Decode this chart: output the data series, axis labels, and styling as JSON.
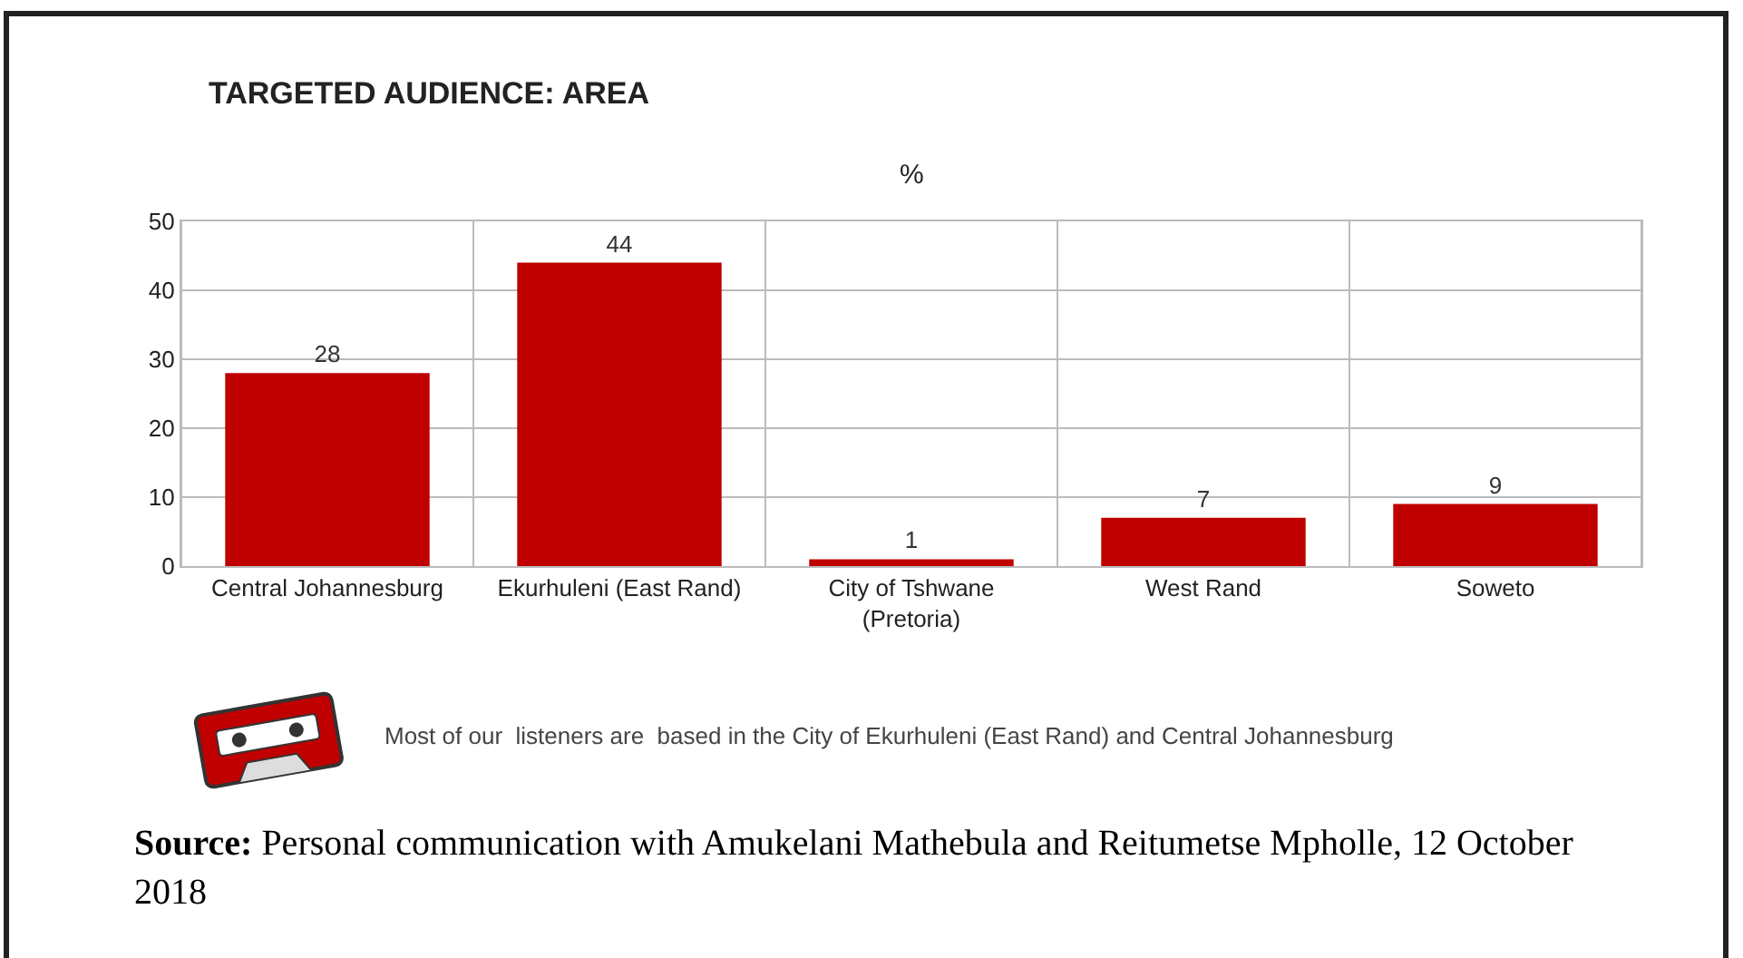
{
  "chart_data": {
    "type": "bar",
    "title": "TARGETED AUDIENCE: AREA",
    "subtitle": "%",
    "categories": [
      "Central Johannesburg",
      "Ekurhuleni (East Rand)",
      "City of Tshwane (Pretoria)",
      "West Rand",
      "Soweto"
    ],
    "values": [
      28,
      44,
      1,
      7,
      9
    ],
    "color": "#c00000",
    "data_labels": true,
    "ylim": [
      0,
      50
    ],
    "yticks": [
      0,
      10,
      20,
      30,
      40,
      50
    ],
    "grid": true,
    "annotations": [
      "Most of our  listeners are  based in the City of Ekurhuleni (East Rand) and Central Johannesburg",
      "Source: Personal communication with Amukelani Mathebula and Reitumetse Mpholle, 12 October 2018"
    ]
  }
}
